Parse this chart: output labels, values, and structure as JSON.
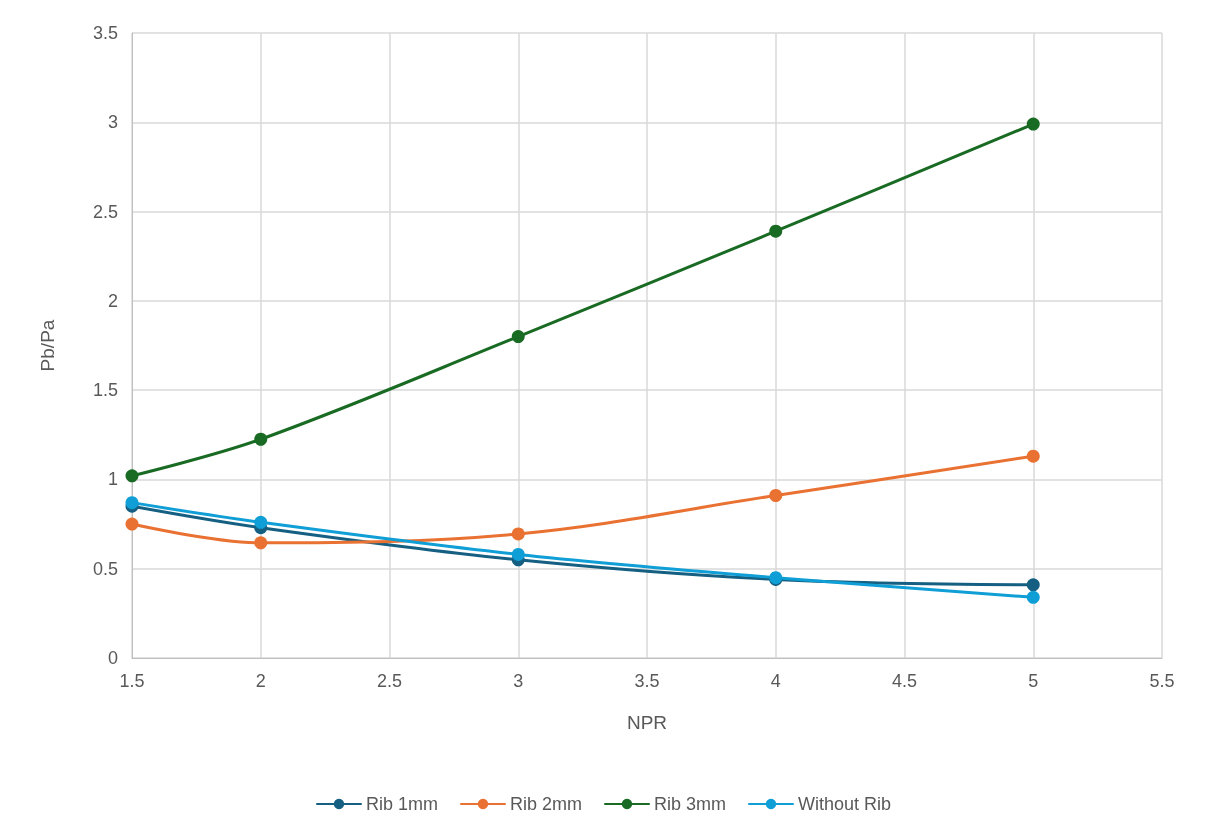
{
  "chart_data": {
    "type": "line",
    "xlabel": "NPR",
    "ylabel": "Pb/Pa",
    "x": [
      1.5,
      2,
      3,
      4,
      5
    ],
    "series": [
      {
        "name": "Rib 1mm",
        "color": "#156082",
        "values": [
          0.85,
          0.73,
          0.55,
          0.44,
          0.41
        ]
      },
      {
        "name": "Rib 2mm",
        "color": "#e97132",
        "values": [
          0.75,
          0.645,
          0.695,
          0.91,
          1.13
        ]
      },
      {
        "name": "Rib 3mm",
        "color": "#196b24",
        "values": [
          1.02,
          1.225,
          1.8,
          2.39,
          2.99
        ]
      },
      {
        "name": "Without Rib",
        "color": "#0f9ed5",
        "values": [
          0.87,
          0.76,
          0.58,
          0.45,
          0.34
        ]
      }
    ],
    "xlim": [
      1.5,
      5.5
    ],
    "xticks": [
      1.5,
      2,
      2.5,
      3,
      3.5,
      4,
      4.5,
      5,
      5.5
    ],
    "ylim": [
      0,
      3.5
    ],
    "yticks": [
      0,
      0.5,
      1,
      1.5,
      2,
      2.5,
      3,
      3.5
    ],
    "grid": true,
    "legend": "bottom",
    "marker": "circle",
    "line_style": "solid"
  }
}
